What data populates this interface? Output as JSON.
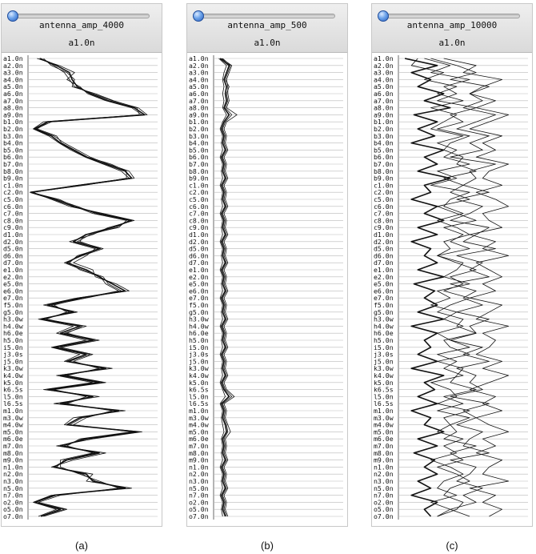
{
  "categories": [
    "a1.0n",
    "a2.0n",
    "a3.0n",
    "a4.0n",
    "a5.0n",
    "a6.0n",
    "a7.0n",
    "a8.0n",
    "a9.0n",
    "b1.0n",
    "b2.0n",
    "b3.0n",
    "b4.0n",
    "b5.0n",
    "b6.0n",
    "b7.0n",
    "b8.0n",
    "b9.0n",
    "c1.0n",
    "c2.0n",
    "c5.0n",
    "c6.0n",
    "c7.0n",
    "c8.0n",
    "c9.0n",
    "d1.0n",
    "d2.0n",
    "d5.0n",
    "d6.0n",
    "d7.0n",
    "e1.0n",
    "e2.0n",
    "e5.0n",
    "e6.0n",
    "e7.0n",
    "f5.0n",
    "g5.0n",
    "h3.0w",
    "h4.0w",
    "h6.0e",
    "h5.0n",
    "i5.0n",
    "j3.0s",
    "j5.0n",
    "k3.0w",
    "k4.0w",
    "k5.0n",
    "k6.5s",
    "l5.0n",
    "l6.5s",
    "m1.0n",
    "m3.0w",
    "m4.0w",
    "m5.0n",
    "m6.0e",
    "m7.0n",
    "m8.0n",
    "m9.0n",
    "n1.0n",
    "n2.0n",
    "n3.0n",
    "n5.0n",
    "n7.0n",
    "o2.0n",
    "o5.0n",
    "o7.0n"
  ],
  "chart_data": [
    {
      "type": "line",
      "orientation": "vertical-categories",
      "title": "antenna_amp_4000",
      "subtitle": "a1.0n",
      "caption": "(a)",
      "xlim": [
        0,
        1
      ],
      "grid": true,
      "series": [
        {
          "name": "",
          "values": [
            0.09,
            0.22,
            0.32,
            0.34,
            0.38,
            0.48,
            0.62,
            0.82,
            0.9,
            0.15,
            0.05,
            0.18,
            0.25,
            0.35,
            0.45,
            0.6,
            0.75,
            0.8,
            0.4,
            0.02,
            0.2,
            0.35,
            0.55,
            0.8,
            0.65,
            0.45,
            0.35,
            0.55,
            0.4,
            0.3,
            0.45,
            0.55,
            0.65,
            0.75,
            0.4,
            0.15,
            0.35,
            0.1,
            0.4,
            0.25,
            0.5,
            0.2,
            0.45,
            0.3,
            0.6,
            0.25,
            0.55,
            0.15,
            0.5,
            0.25,
            0.7,
            0.4,
            0.3,
            0.85,
            0.45,
            0.25,
            0.55,
            0.3,
            0.2,
            0.45,
            0.5,
            0.75,
            0.2,
            0.05,
            0.25,
            0.1
          ]
        },
        {
          "name": "",
          "values": [
            0.1,
            0.2,
            0.28,
            0.32,
            0.36,
            0.5,
            0.65,
            0.85,
            0.92,
            0.18,
            0.06,
            0.2,
            0.28,
            0.38,
            0.48,
            0.62,
            0.78,
            0.82,
            0.42,
            0.03,
            0.22,
            0.38,
            0.52,
            0.78,
            0.68,
            0.48,
            0.38,
            0.58,
            0.42,
            0.28,
            0.42,
            0.58,
            0.62,
            0.72,
            0.45,
            0.18,
            0.32,
            0.12,
            0.45,
            0.28,
            0.55,
            0.25,
            0.5,
            0.35,
            0.55,
            0.3,
            0.6,
            0.2,
            0.45,
            0.3,
            0.65,
            0.45,
            0.35,
            0.8,
            0.4,
            0.3,
            0.5,
            0.25,
            0.25,
            0.4,
            0.55,
            0.7,
            0.25,
            0.08,
            0.3,
            0.12
          ]
        },
        {
          "name": "",
          "values": [
            0.07,
            0.24,
            0.36,
            0.3,
            0.4,
            0.46,
            0.6,
            0.8,
            0.88,
            0.12,
            0.04,
            0.16,
            0.24,
            0.33,
            0.44,
            0.58,
            0.72,
            0.78,
            0.38,
            0.04,
            0.18,
            0.32,
            0.58,
            0.82,
            0.62,
            0.5,
            0.32,
            0.52,
            0.45,
            0.35,
            0.5,
            0.52,
            0.68,
            0.78,
            0.38,
            0.12,
            0.38,
            0.08,
            0.35,
            0.22,
            0.45,
            0.18,
            0.4,
            0.28,
            0.65,
            0.22,
            0.5,
            0.12,
            0.55,
            0.2,
            0.75,
            0.35,
            0.28,
            0.88,
            0.5,
            0.22,
            0.6,
            0.35,
            0.18,
            0.5,
            0.45,
            0.8,
            0.18,
            0.04,
            0.22,
            0.08
          ]
        },
        {
          "name": "",
          "values": [
            0.12,
            0.18,
            0.3,
            0.36,
            0.34,
            0.52,
            0.66,
            0.84,
            0.86,
            0.16,
            0.07,
            0.22,
            0.26,
            0.36,
            0.46,
            0.64,
            0.76,
            0.76,
            0.44,
            0.02,
            0.24,
            0.36,
            0.5,
            0.76,
            0.7,
            0.44,
            0.4,
            0.56,
            0.38,
            0.32,
            0.4,
            0.56,
            0.6,
            0.7,
            0.42,
            0.2,
            0.3,
            0.14,
            0.42,
            0.3,
            0.52,
            0.22,
            0.48,
            0.32,
            0.58,
            0.28,
            0.58,
            0.18,
            0.48,
            0.28,
            0.68,
            0.42,
            0.32,
            0.82,
            0.42,
            0.28,
            0.52,
            0.28,
            0.22,
            0.42,
            0.52,
            0.72,
            0.22,
            0.06,
            0.28,
            0.1
          ]
        }
      ]
    },
    {
      "type": "line",
      "orientation": "vertical-categories",
      "title": "antenna_amp_500",
      "subtitle": "a1.0n",
      "caption": "(b)",
      "xlim": [
        0,
        1
      ],
      "grid": true,
      "series": [
        {
          "name": "",
          "values": [
            0.05,
            0.12,
            0.1,
            0.08,
            0.1,
            0.09,
            0.1,
            0.08,
            0.12,
            0.08,
            0.06,
            0.08,
            0.07,
            0.09,
            0.06,
            0.08,
            0.07,
            0.09,
            0.06,
            0.08,
            0.07,
            0.09,
            0.06,
            0.08,
            0.07,
            0.09,
            0.06,
            0.08,
            0.07,
            0.09,
            0.06,
            0.08,
            0.07,
            0.09,
            0.06,
            0.08,
            0.07,
            0.09,
            0.06,
            0.08,
            0.07,
            0.09,
            0.06,
            0.08,
            0.07,
            0.09,
            0.06,
            0.08,
            0.12,
            0.06,
            0.08,
            0.07,
            0.09,
            0.1,
            0.07,
            0.08,
            0.07,
            0.09,
            0.06,
            0.08,
            0.07,
            0.09,
            0.06,
            0.08,
            0.07,
            0.09
          ]
        },
        {
          "name": "",
          "values": [
            0.06,
            0.14,
            0.12,
            0.1,
            0.11,
            0.11,
            0.12,
            0.1,
            0.18,
            0.1,
            0.08,
            0.1,
            0.09,
            0.11,
            0.08,
            0.1,
            0.09,
            0.11,
            0.08,
            0.1,
            0.09,
            0.11,
            0.08,
            0.1,
            0.09,
            0.11,
            0.08,
            0.1,
            0.09,
            0.11,
            0.08,
            0.1,
            0.09,
            0.11,
            0.08,
            0.1,
            0.09,
            0.11,
            0.08,
            0.1,
            0.09,
            0.11,
            0.08,
            0.1,
            0.09,
            0.11,
            0.08,
            0.1,
            0.16,
            0.08,
            0.1,
            0.09,
            0.11,
            0.13,
            0.09,
            0.1,
            0.09,
            0.11,
            0.08,
            0.1,
            0.09,
            0.11,
            0.08,
            0.1,
            0.09,
            0.11
          ]
        },
        {
          "name": "",
          "values": [
            0.04,
            0.1,
            0.08,
            0.07,
            0.08,
            0.07,
            0.08,
            0.07,
            0.1,
            0.07,
            0.05,
            0.07,
            0.06,
            0.07,
            0.05,
            0.07,
            0.06,
            0.07,
            0.05,
            0.07,
            0.06,
            0.07,
            0.05,
            0.07,
            0.06,
            0.07,
            0.05,
            0.07,
            0.06,
            0.07,
            0.05,
            0.07,
            0.06,
            0.07,
            0.05,
            0.07,
            0.06,
            0.07,
            0.05,
            0.07,
            0.06,
            0.07,
            0.05,
            0.07,
            0.06,
            0.07,
            0.05,
            0.07,
            0.09,
            0.05,
            0.07,
            0.06,
            0.07,
            0.08,
            0.06,
            0.07,
            0.06,
            0.07,
            0.05,
            0.07,
            0.06,
            0.07,
            0.05,
            0.07,
            0.06,
            0.07
          ]
        },
        {
          "name": "",
          "values": [
            0.07,
            0.13,
            0.11,
            0.09,
            0.12,
            0.1,
            0.11,
            0.09,
            0.14,
            0.09,
            0.07,
            0.09,
            0.08,
            0.1,
            0.07,
            0.09,
            0.08,
            0.1,
            0.07,
            0.09,
            0.08,
            0.1,
            0.07,
            0.09,
            0.08,
            0.1,
            0.07,
            0.09,
            0.08,
            0.1,
            0.07,
            0.09,
            0.08,
            0.1,
            0.07,
            0.09,
            0.08,
            0.1,
            0.07,
            0.09,
            0.08,
            0.1,
            0.07,
            0.09,
            0.08,
            0.1,
            0.07,
            0.09,
            0.14,
            0.07,
            0.09,
            0.08,
            0.1,
            0.11,
            0.08,
            0.09,
            0.08,
            0.1,
            0.07,
            0.09,
            0.08,
            0.1,
            0.07,
            0.09,
            0.08,
            0.1
          ]
        }
      ]
    },
    {
      "type": "line",
      "orientation": "vertical-categories",
      "title": "antenna_amp_10000",
      "subtitle": "a1.0n",
      "caption": "(c)",
      "xlim": [
        0,
        1
      ],
      "grid": true,
      "series": [
        {
          "name": "",
          "values": [
            0.05,
            0.3,
            0.1,
            0.25,
            0.15,
            0.35,
            0.2,
            0.4,
            0.12,
            0.3,
            0.15,
            0.28,
            0.1,
            0.35,
            0.2,
            0.3,
            0.15,
            0.4,
            0.2,
            0.25,
            0.1,
            0.3,
            0.2,
            0.35,
            0.15,
            0.3,
            0.1,
            0.25,
            0.2,
            0.3,
            0.15,
            0.35,
            0.12,
            0.28,
            0.2,
            0.3,
            0.15,
            0.35,
            0.1,
            0.3,
            0.2,
            0.25,
            0.15,
            0.3,
            0.1,
            0.35,
            0.2,
            0.28,
            0.15,
            0.3,
            0.1,
            0.25,
            0.2,
            0.35,
            0.15,
            0.3,
            0.12,
            0.28,
            0.2,
            0.3,
            0.15,
            0.25,
            0.1,
            0.3,
            0.2,
            0.25
          ]
        },
        {
          "name": "",
          "values": [
            0.15,
            0.1,
            0.35,
            0.2,
            0.45,
            0.3,
            0.5,
            0.25,
            0.45,
            0.35,
            0.25,
            0.5,
            0.3,
            0.45,
            0.35,
            0.55,
            0.3,
            0.45,
            0.25,
            0.55,
            0.4,
            0.35,
            0.5,
            0.3,
            0.45,
            0.55,
            0.35,
            0.4,
            0.3,
            0.5,
            0.45,
            0.35,
            0.55,
            0.3,
            0.4,
            0.25,
            0.45,
            0.35,
            0.5,
            0.3,
            0.4,
            0.55,
            0.3,
            0.45,
            0.35,
            0.5,
            0.25,
            0.4,
            0.45,
            0.3,
            0.55,
            0.35,
            0.4,
            0.3,
            0.5,
            0.35,
            0.45,
            0.25,
            0.4,
            0.5,
            0.35,
            0.3,
            0.45,
            0.25,
            0.4,
            0.3
          ]
        },
        {
          "name": "",
          "values": [
            0.25,
            0.45,
            0.6,
            0.4,
            0.7,
            0.55,
            0.65,
            0.5,
            0.75,
            0.6,
            0.45,
            0.7,
            0.55,
            0.65,
            0.4,
            0.75,
            0.55,
            0.6,
            0.5,
            0.7,
            0.45,
            0.65,
            0.55,
            0.4,
            0.7,
            0.6,
            0.5,
            0.75,
            0.45,
            0.65,
            0.55,
            0.7,
            0.4,
            0.6,
            0.5,
            0.65,
            0.45,
            0.7,
            0.55,
            0.6,
            0.4,
            0.65,
            0.5,
            0.7,
            0.45,
            0.6,
            0.55,
            0.65,
            0.4,
            0.7,
            0.5,
            0.6,
            0.45,
            0.65,
            0.55,
            0.5,
            0.7,
            0.4,
            0.6,
            0.55,
            0.45,
            0.65,
            0.5,
            0.6,
            0.4,
            0.55
          ]
        },
        {
          "name": "",
          "values": [
            0.35,
            0.6,
            0.5,
            0.8,
            0.65,
            0.55,
            0.75,
            0.6,
            0.85,
            0.7,
            0.55,
            0.8,
            0.65,
            0.75,
            0.6,
            0.85,
            0.7,
            0.65,
            0.8,
            0.6,
            0.75,
            0.85,
            0.65,
            0.7,
            0.8,
            0.55,
            0.75,
            0.65,
            0.85,
            0.6,
            0.7,
            0.8,
            0.65,
            0.75,
            0.55,
            0.8,
            0.7,
            0.6,
            0.85,
            0.65,
            0.75,
            0.7,
            0.6,
            0.8,
            0.65,
            0.85,
            0.7,
            0.55,
            0.75,
            0.65,
            0.8,
            0.6,
            0.7,
            0.85,
            0.65,
            0.75,
            0.6,
            0.8,
            0.7,
            0.65,
            0.85,
            0.55,
            0.75,
            0.65,
            0.8,
            0.7
          ]
        },
        {
          "name": "",
          "values": [
            0.2,
            0.4,
            0.25,
            0.55,
            0.35,
            0.45,
            0.3,
            0.6,
            0.4,
            0.5,
            0.3,
            0.55,
            0.4,
            0.35,
            0.5,
            0.45,
            0.6,
            0.35,
            0.5,
            0.4,
            0.55,
            0.3,
            0.45,
            0.6,
            0.35,
            0.5,
            0.4,
            0.55,
            0.3,
            0.45,
            0.6,
            0.4,
            0.5,
            0.35,
            0.55,
            0.4,
            0.3,
            0.5,
            0.45,
            0.6,
            0.35,
            0.4,
            0.55,
            0.3,
            0.5,
            0.45,
            0.4,
            0.6,
            0.35,
            0.5,
            0.3,
            0.55,
            0.4,
            0.45,
            0.35,
            0.6,
            0.4,
            0.5,
            0.3,
            0.45,
            0.55,
            0.4,
            0.35,
            0.5,
            0.45,
            0.3
          ]
        }
      ]
    }
  ]
}
